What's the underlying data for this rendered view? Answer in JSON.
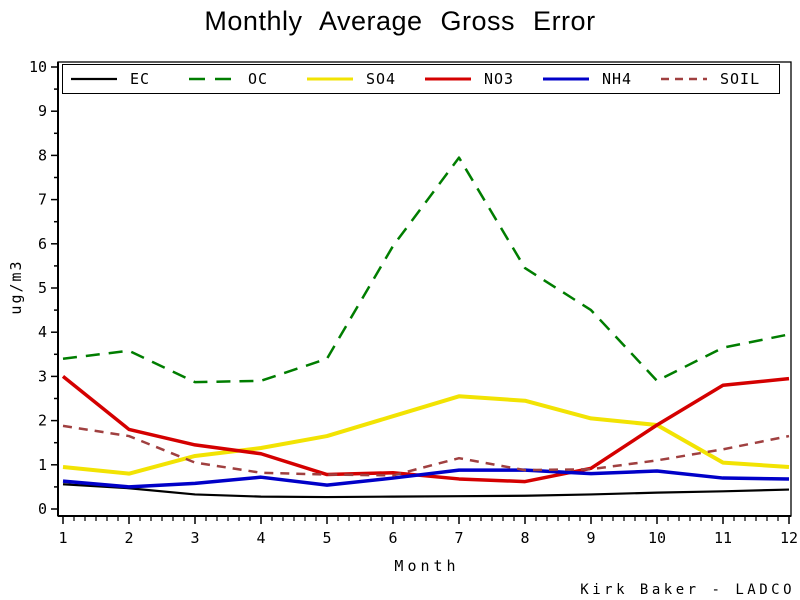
{
  "title": "Monthly Average Gross Error",
  "chart_data": {
    "type": "line",
    "title": "Monthly Average Gross Error",
    "xlabel": "Month",
    "ylabel": "ug/m3",
    "credit": "Kirk Baker - LADCO",
    "x": [
      1,
      2,
      3,
      4,
      5,
      6,
      7,
      8,
      9,
      10,
      11,
      12
    ],
    "xlim": [
      1,
      12
    ],
    "ylim": [
      0,
      10
    ],
    "y_tick_step": 1,
    "y_minor_step": 0.5,
    "x_minor_ticks_per_interval": 5,
    "grid": false,
    "legend_position": "top inside frame",
    "frame": true,
    "axis_color": "#000000",
    "background_color": "#ffffff",
    "series": [
      {
        "name": "EC",
        "color": "#000000",
        "line_style": "solid",
        "width": 2.2,
        "values": [
          0.56,
          0.47,
          0.33,
          0.28,
          0.27,
          0.28,
          0.29,
          0.3,
          0.33,
          0.37,
          0.4,
          0.44
        ]
      },
      {
        "name": "OC",
        "color": "#007d00",
        "line_style": "dashed",
        "width": 2.5,
        "values": [
          3.4,
          3.58,
          2.87,
          2.9,
          3.4,
          5.95,
          7.95,
          5.45,
          4.5,
          2.9,
          3.65,
          3.95
        ]
      },
      {
        "name": "SO4",
        "color": "#f2e303",
        "line_style": "solid",
        "width": 4,
        "values": [
          0.95,
          0.8,
          1.2,
          1.38,
          1.65,
          2.1,
          2.55,
          2.45,
          2.05,
          1.9,
          1.05,
          0.95
        ]
      },
      {
        "name": "NO3",
        "color": "#d40000",
        "line_style": "solid",
        "width": 3.5,
        "values": [
          3.0,
          1.8,
          1.45,
          1.25,
          0.78,
          0.82,
          0.68,
          0.62,
          0.92,
          1.9,
          2.8,
          2.95
        ]
      },
      {
        "name": "NH4",
        "color": "#0000c8",
        "line_style": "solid",
        "width": 3.5,
        "values": [
          0.63,
          0.5,
          0.58,
          0.72,
          0.54,
          0.7,
          0.88,
          0.88,
          0.8,
          0.86,
          0.7,
          0.68
        ]
      },
      {
        "name": "SOIL",
        "color": "#a04040",
        "line_style": "dashed",
        "width": 2.5,
        "values": [
          1.88,
          1.65,
          1.05,
          0.82,
          0.78,
          0.76,
          1.15,
          0.88,
          0.9,
          1.1,
          1.35,
          1.65
        ]
      }
    ]
  }
}
